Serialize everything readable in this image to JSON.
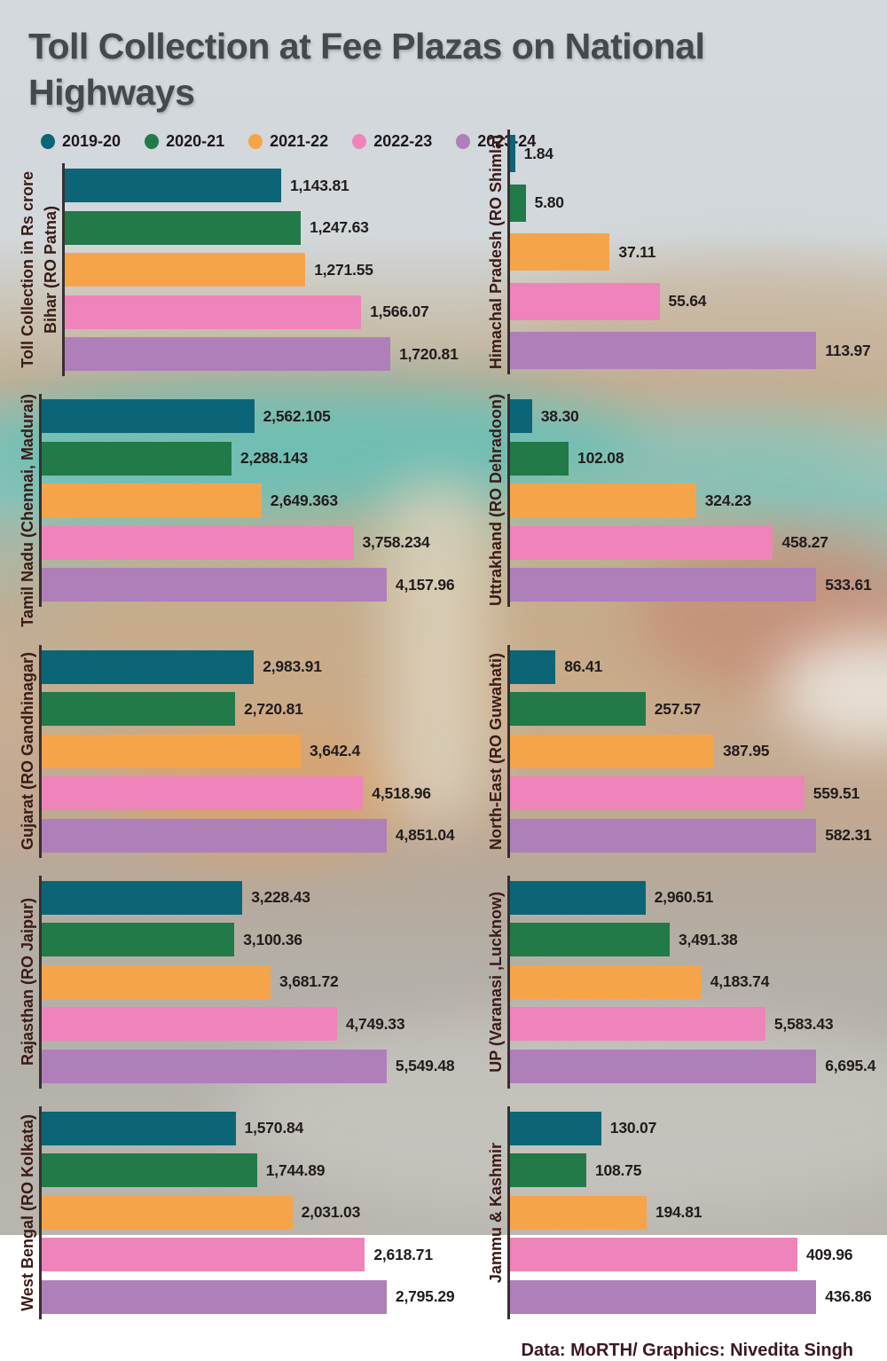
{
  "title": "Toll Collection at Fee Plazas on National Highways",
  "axis_title": "Toll Collection in Rs crore",
  "footer": "Data: MoRTH/ Graphics: Nivedita Singh",
  "legend": [
    {
      "label": "2019-20",
      "color": "#0b6577"
    },
    {
      "label": "2020-21",
      "color": "#217a48"
    },
    {
      "label": "2021-22",
      "color": "#f6a44a"
    },
    {
      "label": "2022-23",
      "color": "#ef84ba"
    },
    {
      "label": "2023-24",
      "color": "#af7fba"
    }
  ],
  "chart_data": {
    "type": "bar",
    "orientation": "horizontal",
    "unit": "Rs crore",
    "title": "Toll Collection at Fee Plazas on National Highways",
    "series_years": [
      "2019-20",
      "2020-21",
      "2021-22",
      "2022-23",
      "2023-24"
    ],
    "legend_position": "top-left",
    "grid": false,
    "charts": [
      {
        "region": "Bihar (RO Patna)",
        "values": [
          1143.81,
          1247.63,
          1271.55,
          1566.07,
          1720.81
        ],
        "labels": [
          "1,143.81",
          "1,247.63",
          "1,271.55",
          "1,566.07",
          "1,720.81"
        ]
      },
      {
        "region": "Himachal Pradesh (RO Shimla)",
        "values": [
          1.84,
          5.8,
          37.11,
          55.64,
          113.97
        ],
        "labels": [
          "1.84",
          "5.80",
          "37.11",
          "55.64",
          "113.97"
        ]
      },
      {
        "region": "Tamil Nadu (Chennai, Madurai)",
        "values": [
          2562.105,
          2288.143,
          2649.363,
          3758.234,
          4157.96
        ],
        "labels": [
          "2,562.105",
          "2,288.143",
          "2,649.363",
          "3,758.234",
          "4,157.96"
        ]
      },
      {
        "region": "Uttrakhand (RO Dehradoon)",
        "values": [
          38.3,
          102.08,
          324.23,
          458.27,
          533.61
        ],
        "labels": [
          "38.30",
          "102.08",
          "324.23",
          "458.27",
          "533.61"
        ]
      },
      {
        "region": "Gujarat (RO Gandhinagar)",
        "values": [
          2983.91,
          2720.81,
          3642.4,
          4518.96,
          4851.04
        ],
        "labels": [
          "2,983.91",
          "2,720.81",
          "3,642.4",
          "4,518.96",
          "4,851.04"
        ]
      },
      {
        "region": "North-East (RO Guwahati)",
        "values": [
          86.41,
          257.57,
          387.95,
          559.51,
          582.31
        ],
        "labels": [
          "86.41",
          "257.57",
          "387.95",
          "559.51",
          "582.31"
        ]
      },
      {
        "region": "Rajasthan (RO Jaipur)",
        "values": [
          3228.43,
          3100.36,
          3681.72,
          4749.33,
          5549.48
        ],
        "labels": [
          "3,228.43",
          "3,100.36",
          "3,681.72",
          "4,749.33",
          "5,549.48"
        ]
      },
      {
        "region": "UP (Varanasi ,Lucknow)",
        "values": [
          2960.51,
          3491.38,
          4183.74,
          5583.43,
          6695.4
        ],
        "labels": [
          "2,960.51",
          "3,491.38",
          "4,183.74",
          "5,583.43",
          "6,695.4"
        ]
      },
      {
        "region": "West Bengal (RO Kolkata)",
        "values": [
          1570.84,
          1744.89,
          2031.03,
          2618.71,
          2795.29
        ],
        "labels": [
          "1,570.84",
          "1,744.89",
          "2,031.03",
          "2,618.71",
          "2,795.29"
        ]
      },
      {
        "region": "Jammu & Kashmir",
        "values": [
          130.07,
          108.75,
          194.81,
          409.96,
          436.86
        ],
        "labels": [
          "130.07",
          "108.75",
          "194.81",
          "409.96",
          "436.86"
        ]
      }
    ]
  }
}
